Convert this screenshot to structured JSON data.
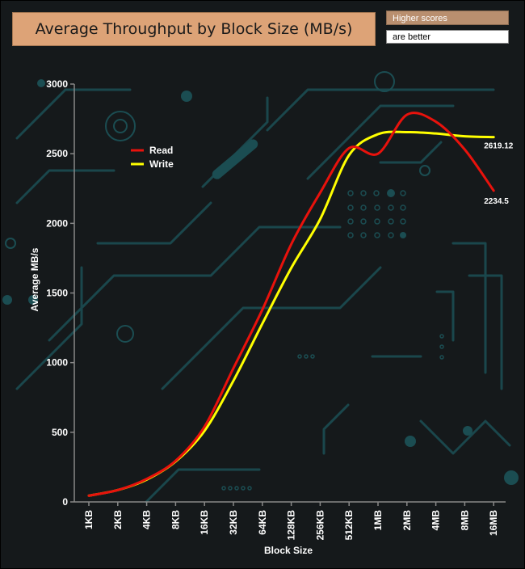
{
  "header": {
    "title": "Average Throughput by Block Size (MB/s)",
    "note_line1": "Higher scores",
    "note_line2": "are better"
  },
  "colors": {
    "read": "#e8120c",
    "write": "#ffff00",
    "title_bg": "#dda377",
    "background": "#15191b",
    "circuit": "#1c5a5e"
  },
  "chart_data": {
    "type": "line",
    "title": "Average Throughput by Block Size (MB/s)",
    "xlabel": "Block Size",
    "ylabel": "Average MB/s",
    "categories": [
      "1KB",
      "2KB",
      "4KB",
      "8KB",
      "16KB",
      "32KB",
      "64KB",
      "128KB",
      "256KB",
      "512KB",
      "1MB",
      "2MB",
      "4MB",
      "8MB",
      "16MB"
    ],
    "ylim": [
      0,
      3000
    ],
    "yticks": [
      0,
      500,
      1000,
      1500,
      2000,
      2500,
      3000
    ],
    "grid": false,
    "legend_position": "top-left",
    "series": [
      {
        "name": "Read",
        "color": "#e8120c",
        "values": [
          45,
          85,
          165,
          295,
          540,
          960,
          1380,
          1850,
          2220,
          2540,
          2500,
          2780,
          2730,
          2530,
          2234.5
        ]
      },
      {
        "name": "Write",
        "color": "#ffff00",
        "values": [
          45,
          85,
          160,
          290,
          510,
          870,
          1280,
          1680,
          2030,
          2490,
          2640,
          2655,
          2645,
          2625,
          2619.12
        ]
      }
    ],
    "end_labels": [
      {
        "series": "Write",
        "text": "2619.12"
      },
      {
        "series": "Read",
        "text": "2234.5"
      }
    ]
  }
}
